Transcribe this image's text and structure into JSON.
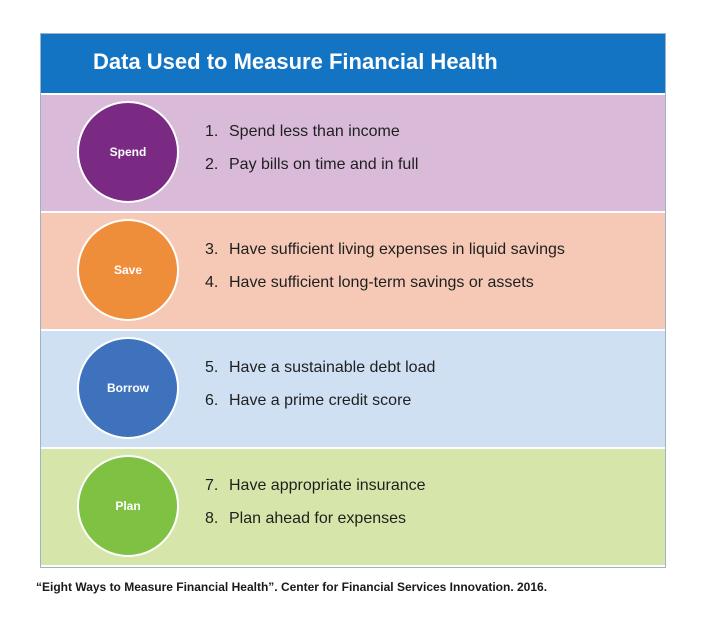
{
  "title": "Data Used to Measure Financial Health",
  "rows": [
    {
      "label": "Spend",
      "row_color": "#d9bbd9",
      "circle_color": "#7b2a83",
      "items": [
        {
          "num": "1.",
          "text": "Spend less than income"
        },
        {
          "num": "2.",
          "text": "Pay bills on time and in full"
        }
      ]
    },
    {
      "label": "Save",
      "row_color": "#f5c9b6",
      "circle_color": "#ef8e3a",
      "items": [
        {
          "num": "3.",
          "text": "Have sufficient living expenses in liquid savings"
        },
        {
          "num": "4.",
          "text": "Have sufficient long-term savings or assets"
        }
      ]
    },
    {
      "label": "Borrow",
      "row_color": "#cfe0f3",
      "circle_color": "#3f72bd",
      "items": [
        {
          "num": "5.",
          "text": "Have a sustainable debt load"
        },
        {
          "num": "6.",
          "text": "Have a prime credit score"
        }
      ]
    },
    {
      "label": "Plan",
      "row_color": "#d6e6aa",
      "circle_color": "#7fc142",
      "items": [
        {
          "num": "7.",
          "text": "Have appropriate insurance"
        },
        {
          "num": "8.",
          "text": "Plan ahead for expenses"
        }
      ]
    }
  ],
  "caption": "“Eight Ways to Measure Financial Health”. Center for Financial Services Innovation. 2016."
}
